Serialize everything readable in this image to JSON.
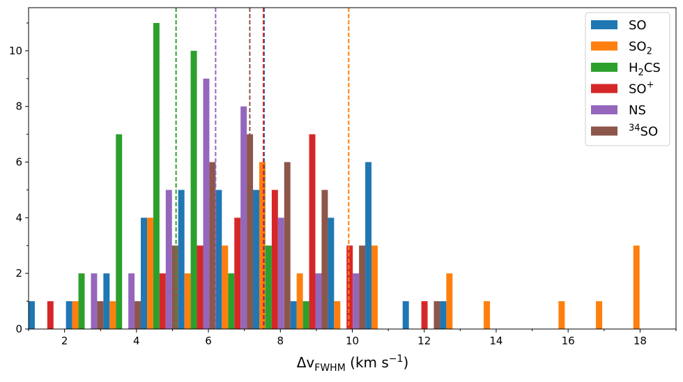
{
  "chart_data": {
    "type": "bar",
    "xlabel_parts": {
      "delta": "Δv",
      "sub": "FWHM",
      "unit": " (km s",
      "sup": "−1",
      "close": ")"
    },
    "ylabel": "",
    "xlim": [
      1,
      19
    ],
    "ylim": [
      0,
      11.55
    ],
    "x_ticks": [
      2,
      4,
      6,
      8,
      10,
      12,
      14,
      16,
      18
    ],
    "y_ticks": [
      0,
      2,
      4,
      6,
      8,
      10
    ],
    "grid": false,
    "legend_position": "top-right",
    "bin_edges": [
      1,
      2.04,
      3.08,
      4.12,
      5.16,
      6.2,
      7.24,
      8.28,
      9.32,
      10.36,
      11.4,
      12.44,
      13.48,
      14.52,
      15.56,
      16.6,
      17.64,
      18.68
    ],
    "series": [
      {
        "name": "SO",
        "base": "SO",
        "sub": "",
        "sup": "",
        "color": "#1f77b4",
        "values": [
          1,
          1,
          2,
          4,
          5,
          5,
          5,
          1,
          4,
          6,
          1,
          1,
          0,
          0,
          0,
          0,
          0
        ]
      },
      {
        "name": "SO2",
        "base": "SO",
        "sub": "2",
        "sup": "",
        "color": "#ff7f0e",
        "values": [
          0,
          1,
          1,
          4,
          2,
          3,
          6,
          2,
          1,
          3,
          0,
          2,
          1,
          0,
          1,
          1,
          3
        ]
      },
      {
        "name": "H2CS",
        "base": "H",
        "sub": "2",
        "sup": "",
        "tail": "CS",
        "color": "#2ca02c",
        "values": [
          0,
          2,
          7,
          11,
          10,
          2,
          3,
          1,
          0,
          0,
          0,
          0,
          0,
          0,
          0,
          0,
          0
        ]
      },
      {
        "name": "SO+",
        "base": "SO",
        "sub": "",
        "sup": "+",
        "color": "#d62728",
        "values": [
          1,
          0,
          0,
          2,
          3,
          4,
          5,
          7,
          3,
          0,
          1,
          0,
          0,
          0,
          0,
          0,
          0
        ]
      },
      {
        "name": "NS",
        "base": "NS",
        "sub": "",
        "sup": "",
        "color": "#9467bd",
        "values": [
          0,
          2,
          2,
          5,
          9,
          8,
          4,
          2,
          2,
          0,
          0,
          0,
          0,
          0,
          0,
          0,
          0
        ]
      },
      {
        "name": "34SO",
        "base": "SO",
        "pre_sup": "34",
        "sub": "",
        "sup": "",
        "color": "#8c564b",
        "values": [
          0,
          1,
          1,
          3,
          6,
          7,
          6,
          5,
          3,
          0,
          1,
          0,
          0,
          0,
          0,
          0,
          0
        ]
      }
    ],
    "mean_lines": [
      {
        "series": "SO",
        "x": 7.55,
        "color": "#1f77b4"
      },
      {
        "series": "SO2",
        "x": 9.9,
        "color": "#ff7f0e"
      },
      {
        "series": "H2CS",
        "x": 5.1,
        "color": "#2ca02c"
      },
      {
        "series": "SO+",
        "x": 7.53,
        "color": "#d62728"
      },
      {
        "series": "NS",
        "x": 6.2,
        "color": "#9467bd"
      },
      {
        "series": "34SO",
        "x": 7.15,
        "color": "#8c564b"
      }
    ]
  }
}
